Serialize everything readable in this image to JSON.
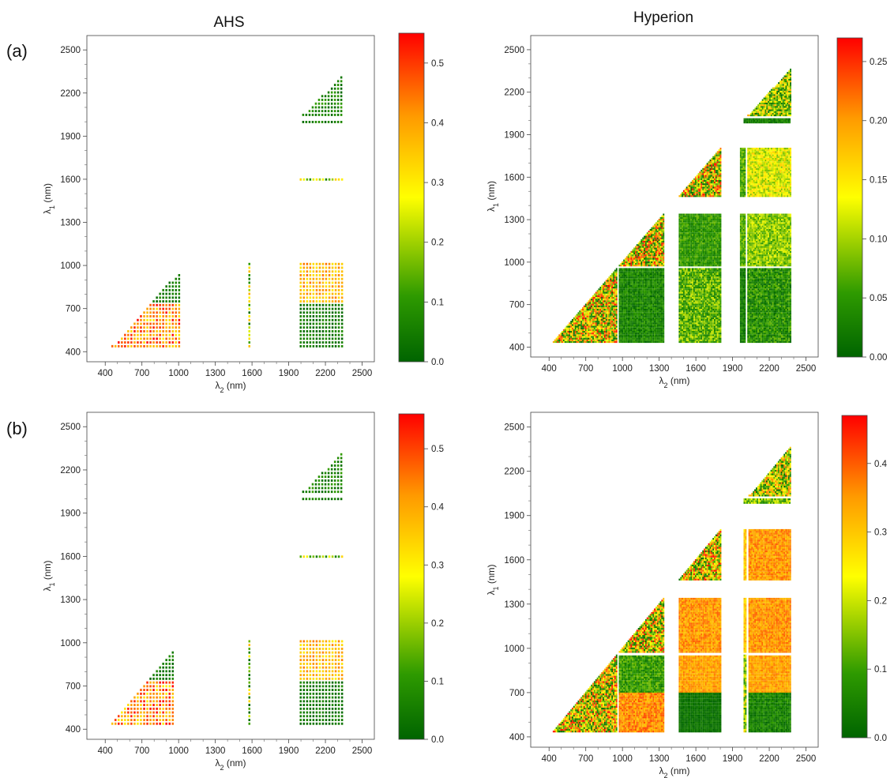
{
  "columns": [
    "AHS",
    "Hyperion"
  ],
  "rows": [
    "(a)",
    "(b)"
  ],
  "axis_labels": {
    "y_symbol": "λ",
    "y_sub": "1",
    "y_unit": "(nm)",
    "x_symbol": "λ",
    "x_sub": "2",
    "x_unit": "(nm)"
  },
  "colors": {
    "low": "#006400",
    "mid_low": "#2e9a00",
    "mid": "#ffff00",
    "mid_high": "#ff9900",
    "high": "#ff0000"
  },
  "chart_data": [
    {
      "type": "heatmap",
      "id": "a-ahs",
      "row": "(a)",
      "title": "AHS",
      "xlabel": "λ2 (nm)",
      "ylabel": "λ1 (nm)",
      "xlim": [
        250,
        2600
      ],
      "ylim": [
        330,
        2600
      ],
      "xticks": [
        400,
        700,
        1000,
        1300,
        1600,
        1900,
        2200,
        2500
      ],
      "yticks": [
        400,
        700,
        1000,
        1300,
        1600,
        1900,
        2200,
        2500
      ],
      "colorbar": {
        "min": 0.0,
        "max": 0.55,
        "ticks": [
          0.0,
          0.1,
          0.2,
          0.3,
          0.4,
          0.5
        ],
        "tick_labels": [
          "0.0",
          "0.1",
          "0.2",
          "0.3",
          "0.4",
          "0.5"
        ]
      },
      "style": "dots",
      "regions": [
        {
          "kind": "triangle",
          "x": [
            450,
            1000
          ],
          "y": [
            430,
            950
          ],
          "low": 0.3,
          "high": 0.55,
          "upper_low": 0.0,
          "upper_high": 0.08,
          "split": 720
        },
        {
          "kind": "column",
          "x": [
            1570,
            1580
          ],
          "y": [
            430,
            1010
          ],
          "low": 0.0,
          "high": 0.4
        },
        {
          "kind": "rect",
          "x": [
            1990,
            2330
          ],
          "y": [
            430,
            1010
          ],
          "low_lower": 0.0,
          "high_lower": 0.08,
          "low_upper": 0.3,
          "high_upper": 0.45,
          "split": 720
        },
        {
          "kind": "row",
          "x": [
            1990,
            2330
          ],
          "y": [
            1590,
            1600
          ],
          "low": 0.05,
          "high": 0.35
        },
        {
          "kind": "row",
          "x": [
            2010,
            2330
          ],
          "y": [
            1990,
            2000
          ],
          "low": 0.0,
          "high": 0.08
        },
        {
          "kind": "triangle",
          "x": [
            2010,
            2330
          ],
          "y": [
            2040,
            2310
          ],
          "low": 0.0,
          "high": 0.12,
          "upper_low": 0.0,
          "upper_high": 0.12,
          "split": 2040
        }
      ]
    },
    {
      "type": "heatmap",
      "id": "a-hyp",
      "row": "(a)",
      "title": "Hyperion",
      "xlabel": "λ2 (nm)",
      "ylabel": "λ1 (nm)",
      "xlim": [
        250,
        2600
      ],
      "ylim": [
        330,
        2600
      ],
      "xticks": [
        400,
        700,
        1000,
        1300,
        1600,
        1900,
        2200,
        2500
      ],
      "yticks": [
        400,
        700,
        1000,
        1300,
        1600,
        1900,
        2200,
        2500
      ],
      "colorbar": {
        "min": 0.0,
        "max": 0.27,
        "ticks": [
          0.0,
          0.05,
          0.1,
          0.15,
          0.2,
          0.25
        ],
        "tick_labels": [
          "0.00",
          "0.05",
          "0.10",
          "0.15",
          "0.20",
          "0.25"
        ]
      },
      "style": "dense",
      "regions": [
        {
          "kind": "triangle",
          "x": [
            430,
            950
          ],
          "y": [
            430,
            950
          ],
          "low": 0.0,
          "high": 0.27,
          "upper_low": 0.0,
          "upper_high": 0.27,
          "split": 430
        },
        {
          "kind": "rect",
          "x": [
            970,
            1340
          ],
          "y": [
            430,
            950
          ],
          "low": 0.0,
          "high": 0.06
        },
        {
          "kind": "rect",
          "x": [
            1460,
            1800
          ],
          "y": [
            430,
            950
          ],
          "low": 0.02,
          "high": 0.12
        },
        {
          "kind": "rect",
          "x": [
            1960,
            2000
          ],
          "y": [
            430,
            950
          ],
          "low": 0.0,
          "high": 0.05
        },
        {
          "kind": "rect",
          "x": [
            2020,
            2370
          ],
          "y": [
            430,
            950
          ],
          "low": 0.0,
          "high": 0.08
        },
        {
          "kind": "triangle",
          "x": [
            970,
            1340
          ],
          "y": [
            970,
            1340
          ],
          "low": 0.0,
          "high": 0.27,
          "upper_low": 0.0,
          "upper_high": 0.27,
          "split": 970
        },
        {
          "kind": "rect",
          "x": [
            1460,
            1800
          ],
          "y": [
            970,
            1340
          ],
          "low": 0.02,
          "high": 0.08
        },
        {
          "kind": "rect",
          "x": [
            1960,
            2000
          ],
          "y": [
            970,
            1340
          ],
          "low": 0.03,
          "high": 0.1
        },
        {
          "kind": "rect",
          "x": [
            2020,
            2370
          ],
          "y": [
            970,
            1340
          ],
          "low": 0.05,
          "high": 0.13
        },
        {
          "kind": "triangle",
          "x": [
            1460,
            1800
          ],
          "y": [
            1460,
            1800
          ],
          "low": 0.0,
          "high": 0.27,
          "upper_low": 0.0,
          "upper_high": 0.27,
          "split": 1460
        },
        {
          "kind": "rect",
          "x": [
            1960,
            2000
          ],
          "y": [
            1460,
            1800
          ],
          "low": 0.03,
          "high": 0.1
        },
        {
          "kind": "rect",
          "x": [
            2020,
            2370
          ],
          "y": [
            1460,
            1800
          ],
          "low": 0.08,
          "high": 0.17
        },
        {
          "kind": "row",
          "x": [
            1990,
            2370
          ],
          "y": [
            1980,
            2010
          ],
          "low": 0.0,
          "high": 0.05
        },
        {
          "kind": "triangle",
          "x": [
            2020,
            2370
          ],
          "y": [
            2030,
            2360
          ],
          "low": 0.0,
          "high": 0.2,
          "upper_low": 0.0,
          "upper_high": 0.2,
          "split": 2030
        }
      ]
    },
    {
      "type": "heatmap",
      "id": "b-ahs",
      "row": "(b)",
      "title": "AHS",
      "xlabel": "λ2 (nm)",
      "ylabel": "λ1 (nm)",
      "xlim": [
        250,
        2600
      ],
      "ylim": [
        330,
        2600
      ],
      "xticks": [
        400,
        700,
        1000,
        1300,
        1600,
        1900,
        2200,
        2500
      ],
      "yticks": [
        400,
        700,
        1000,
        1300,
        1600,
        1900,
        2200,
        2500
      ],
      "colorbar": {
        "min": 0.0,
        "max": 0.56,
        "ticks": [
          0.0,
          0.1,
          0.2,
          0.3,
          0.4,
          0.5
        ],
        "tick_labels": [
          "0.0",
          "0.1",
          "0.2",
          "0.3",
          "0.4",
          "0.5"
        ]
      },
      "style": "dots",
      "regions": [
        {
          "kind": "triangle",
          "x": [
            450,
            960
          ],
          "y": [
            430,
            950
          ],
          "low": 0.3,
          "high": 0.56,
          "upper_low": 0.0,
          "upper_high": 0.08,
          "split": 720
        },
        {
          "kind": "column",
          "x": [
            1570,
            1580
          ],
          "y": [
            430,
            1010
          ],
          "low": 0.0,
          "high": 0.4
        },
        {
          "kind": "rect",
          "x": [
            1990,
            2330
          ],
          "y": [
            430,
            1010
          ],
          "low_lower": 0.0,
          "high_lower": 0.08,
          "low_upper": 0.3,
          "high_upper": 0.45,
          "split": 720
        },
        {
          "kind": "row",
          "x": [
            1990,
            2330
          ],
          "y": [
            1590,
            1600
          ],
          "low": 0.05,
          "high": 0.35
        },
        {
          "kind": "row",
          "x": [
            2010,
            2330
          ],
          "y": [
            1990,
            2000
          ],
          "low": 0.0,
          "high": 0.08
        },
        {
          "kind": "triangle",
          "x": [
            2010,
            2330
          ],
          "y": [
            2040,
            2310
          ],
          "low": 0.0,
          "high": 0.12,
          "upper_low": 0.0,
          "upper_high": 0.12,
          "split": 2040
        }
      ]
    },
    {
      "type": "heatmap",
      "id": "b-hyp",
      "row": "(b)",
      "title": "Hyperion",
      "xlabel": "λ2 (nm)",
      "ylabel": "λ1 (nm)",
      "xlim": [
        250,
        2600
      ],
      "ylim": [
        330,
        2600
      ],
      "xticks": [
        400,
        700,
        1000,
        1300,
        1600,
        1900,
        2200,
        2500
      ],
      "yticks": [
        400,
        700,
        1000,
        1300,
        1600,
        1900,
        2200,
        2500
      ],
      "colorbar": {
        "min": 0.0,
        "max": 0.47,
        "ticks": [
          0.0,
          0.1,
          0.2,
          0.3,
          0.4
        ],
        "tick_labels": [
          "0.0",
          "0.1",
          "0.2",
          "0.3",
          "0.4"
        ]
      },
      "style": "dense",
      "regions": [
        {
          "kind": "triangle",
          "x": [
            430,
            950
          ],
          "y": [
            430,
            950
          ],
          "low": 0.0,
          "high": 0.47,
          "upper_low": 0.0,
          "upper_high": 0.47,
          "split": 430
        },
        {
          "kind": "rect",
          "x": [
            970,
            1340
          ],
          "y": [
            430,
            700
          ],
          "low": 0.3,
          "high": 0.42
        },
        {
          "kind": "rect",
          "x": [
            970,
            1340
          ],
          "y": [
            700,
            950
          ],
          "low": 0.03,
          "high": 0.15
        },
        {
          "kind": "rect",
          "x": [
            1460,
            1800
          ],
          "y": [
            430,
            700
          ],
          "low": 0.0,
          "high": 0.05
        },
        {
          "kind": "rect",
          "x": [
            1460,
            1800
          ],
          "y": [
            700,
            950
          ],
          "low": 0.3,
          "high": 0.38
        },
        {
          "kind": "rect",
          "x": [
            1990,
            2010
          ],
          "y": [
            430,
            950
          ],
          "low": 0.05,
          "high": 0.3
        },
        {
          "kind": "rect",
          "x": [
            2030,
            2370
          ],
          "y": [
            430,
            700
          ],
          "low": 0.0,
          "high": 0.1
        },
        {
          "kind": "rect",
          "x": [
            2030,
            2370
          ],
          "y": [
            700,
            950
          ],
          "low": 0.3,
          "high": 0.38
        },
        {
          "kind": "triangle",
          "x": [
            970,
            1340
          ],
          "y": [
            970,
            1340
          ],
          "low": 0.0,
          "high": 0.47,
          "upper_low": 0.0,
          "upper_high": 0.47,
          "split": 970
        },
        {
          "kind": "rect",
          "x": [
            1460,
            1800
          ],
          "y": [
            970,
            1340
          ],
          "low": 0.3,
          "high": 0.4
        },
        {
          "kind": "rect",
          "x": [
            1990,
            2010
          ],
          "y": [
            970,
            1340
          ],
          "low": 0.25,
          "high": 0.35
        },
        {
          "kind": "rect",
          "x": [
            2030,
            2370
          ],
          "y": [
            970,
            1340
          ],
          "low": 0.3,
          "high": 0.4
        },
        {
          "kind": "triangle",
          "x": [
            1460,
            1800
          ],
          "y": [
            1460,
            1800
          ],
          "low": 0.0,
          "high": 0.47,
          "upper_low": 0.0,
          "upper_high": 0.47,
          "split": 1460
        },
        {
          "kind": "rect",
          "x": [
            1990,
            2010
          ],
          "y": [
            1460,
            1800
          ],
          "low": 0.25,
          "high": 0.35
        },
        {
          "kind": "rect",
          "x": [
            2030,
            2370
          ],
          "y": [
            1460,
            1800
          ],
          "low": 0.3,
          "high": 0.4
        },
        {
          "kind": "row",
          "x": [
            1990,
            2370
          ],
          "y": [
            1980,
            2010
          ],
          "low": 0.05,
          "high": 0.25
        },
        {
          "kind": "triangle",
          "x": [
            2030,
            2370
          ],
          "y": [
            2030,
            2360
          ],
          "low": 0.0,
          "high": 0.4,
          "upper_low": 0.0,
          "upper_high": 0.4,
          "split": 2030
        }
      ]
    }
  ]
}
